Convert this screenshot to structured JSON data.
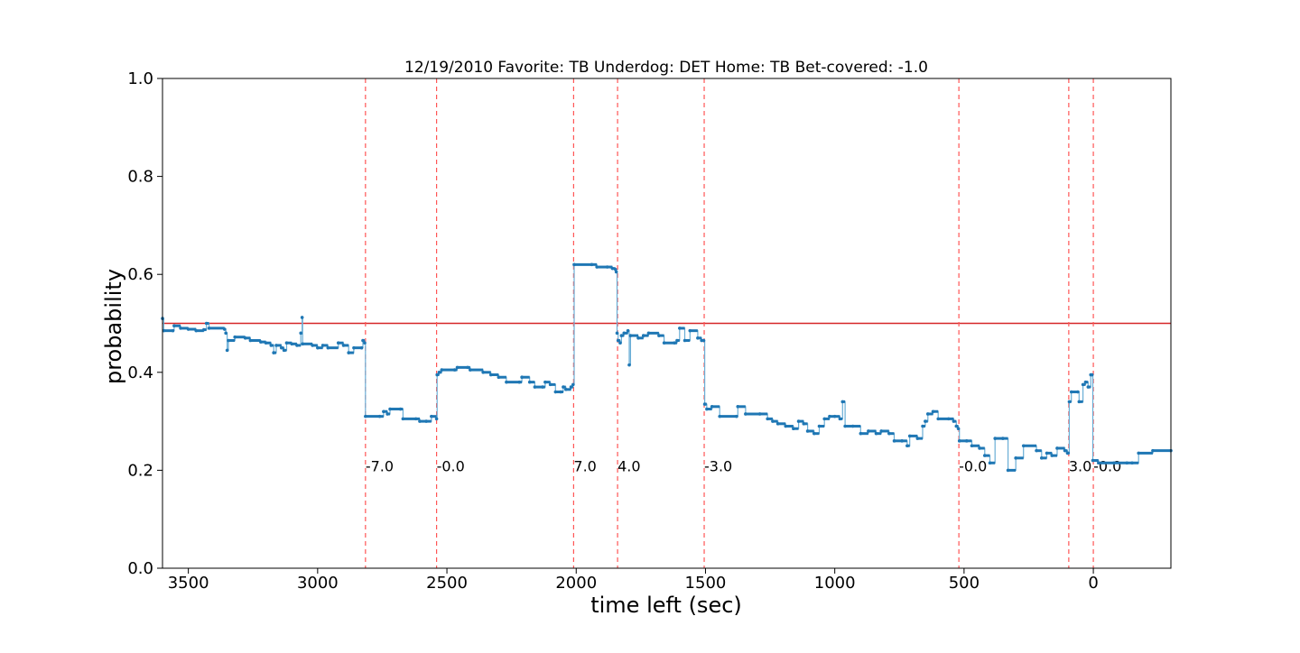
{
  "chart_data": {
    "type": "line",
    "title": "12/19/2010 Favorite: TB Underdog: DET Home: TB Bet-covered: -1.0",
    "xlabel": "time left (sec)",
    "ylabel": "probability",
    "xlim": [
      3600,
      -300
    ],
    "ylim": [
      0.0,
      1.0
    ],
    "x_ticks": [
      {
        "value": 3500,
        "label": "3500"
      },
      {
        "value": 3000,
        "label": "3000"
      },
      {
        "value": 2500,
        "label": "2500"
      },
      {
        "value": 2000,
        "label": "2000"
      },
      {
        "value": 1500,
        "label": "1500"
      },
      {
        "value": 1000,
        "label": "1000"
      },
      {
        "value": 500,
        "label": "500"
      },
      {
        "value": 0,
        "label": "0"
      }
    ],
    "y_ticks": [
      {
        "value": 0.0,
        "label": "0.0"
      },
      {
        "value": 0.2,
        "label": "0.2"
      },
      {
        "value": 0.4,
        "label": "0.4"
      },
      {
        "value": 0.6,
        "label": "0.6"
      },
      {
        "value": 0.8,
        "label": "0.8"
      },
      {
        "value": 1.0,
        "label": "1.0"
      }
    ],
    "grid": false,
    "reference_line": {
      "y": 0.5,
      "color": "#d62728"
    },
    "score_events": [
      {
        "x": 2815,
        "label": "-7.0"
      },
      {
        "x": 2540,
        "label": "-0.0"
      },
      {
        "x": 2010,
        "label": "7.0"
      },
      {
        "x": 1840,
        "label": "4.0"
      },
      {
        "x": 1505,
        "label": "-3.0"
      },
      {
        "x": 520,
        "label": "-0.0"
      },
      {
        "x": 95,
        "label": "3.0"
      },
      {
        "x": 0,
        "label": "-0.0"
      }
    ],
    "series": [
      {
        "color": "#1f77b4",
        "points": [
          [
            3600,
            0.51
          ],
          [
            3595,
            0.485
          ],
          [
            3560,
            0.485
          ],
          [
            3555,
            0.495
          ],
          [
            3530,
            0.49
          ],
          [
            3500,
            0.488
          ],
          [
            3470,
            0.485
          ],
          [
            3440,
            0.487
          ],
          [
            3430,
            0.5
          ],
          [
            3420,
            0.49
          ],
          [
            3360,
            0.488
          ],
          [
            3355,
            0.48
          ],
          [
            3350,
            0.445
          ],
          [
            3345,
            0.465
          ],
          [
            3320,
            0.472
          ],
          [
            3280,
            0.47
          ],
          [
            3260,
            0.465
          ],
          [
            3220,
            0.462
          ],
          [
            3200,
            0.46
          ],
          [
            3180,
            0.455
          ],
          [
            3170,
            0.44
          ],
          [
            3160,
            0.455
          ],
          [
            3140,
            0.45
          ],
          [
            3130,
            0.445
          ],
          [
            3120,
            0.46
          ],
          [
            3100,
            0.458
          ],
          [
            3080,
            0.455
          ],
          [
            3065,
            0.48
          ],
          [
            3060,
            0.512
          ],
          [
            3058,
            0.458
          ],
          [
            3020,
            0.455
          ],
          [
            3000,
            0.45
          ],
          [
            2980,
            0.455
          ],
          [
            2960,
            0.45
          ],
          [
            2920,
            0.46
          ],
          [
            2900,
            0.455
          ],
          [
            2880,
            0.44
          ],
          [
            2860,
            0.45
          ],
          [
            2830,
            0.45
          ],
          [
            2825,
            0.465
          ],
          [
            2818,
            0.46
          ],
          [
            2815,
            0.31
          ],
          [
            2760,
            0.31
          ],
          [
            2745,
            0.32
          ],
          [
            2730,
            0.315
          ],
          [
            2720,
            0.325
          ],
          [
            2680,
            0.325
          ],
          [
            2670,
            0.305
          ],
          [
            2620,
            0.305
          ],
          [
            2605,
            0.3
          ],
          [
            2580,
            0.3
          ],
          [
            2560,
            0.31
          ],
          [
            2540,
            0.305
          ],
          [
            2538,
            0.395
          ],
          [
            2530,
            0.4
          ],
          [
            2520,
            0.405
          ],
          [
            2470,
            0.405
          ],
          [
            2460,
            0.41
          ],
          [
            2420,
            0.41
          ],
          [
            2410,
            0.405
          ],
          [
            2360,
            0.4
          ],
          [
            2330,
            0.395
          ],
          [
            2300,
            0.39
          ],
          [
            2270,
            0.38
          ],
          [
            2220,
            0.38
          ],
          [
            2210,
            0.39
          ],
          [
            2180,
            0.38
          ],
          [
            2160,
            0.37
          ],
          [
            2130,
            0.37
          ],
          [
            2120,
            0.38
          ],
          [
            2100,
            0.375
          ],
          [
            2080,
            0.36
          ],
          [
            2060,
            0.36
          ],
          [
            2050,
            0.37
          ],
          [
            2040,
            0.365
          ],
          [
            2020,
            0.37
          ],
          [
            2012,
            0.375
          ],
          [
            2008,
            0.62
          ],
          [
            1940,
            0.62
          ],
          [
            1920,
            0.615
          ],
          [
            1880,
            0.615
          ],
          [
            1860,
            0.612
          ],
          [
            1848,
            0.61
          ],
          [
            1845,
            0.605
          ],
          [
            1842,
            0.48
          ],
          [
            1838,
            0.465
          ],
          [
            1830,
            0.46
          ],
          [
            1825,
            0.475
          ],
          [
            1815,
            0.48
          ],
          [
            1800,
            0.485
          ],
          [
            1795,
            0.415
          ],
          [
            1790,
            0.475
          ],
          [
            1760,
            0.47
          ],
          [
            1740,
            0.475
          ],
          [
            1720,
            0.48
          ],
          [
            1680,
            0.475
          ],
          [
            1660,
            0.46
          ],
          [
            1620,
            0.46
          ],
          [
            1610,
            0.465
          ],
          [
            1600,
            0.49
          ],
          [
            1580,
            0.465
          ],
          [
            1560,
            0.485
          ],
          [
            1530,
            0.47
          ],
          [
            1515,
            0.465
          ],
          [
            1507,
            0.465
          ],
          [
            1503,
            0.335
          ],
          [
            1495,
            0.325
          ],
          [
            1475,
            0.33
          ],
          [
            1445,
            0.31
          ],
          [
            1380,
            0.31
          ],
          [
            1375,
            0.33
          ],
          [
            1345,
            0.315
          ],
          [
            1290,
            0.315
          ],
          [
            1260,
            0.305
          ],
          [
            1240,
            0.3
          ],
          [
            1220,
            0.295
          ],
          [
            1190,
            0.29
          ],
          [
            1160,
            0.285
          ],
          [
            1140,
            0.3
          ],
          [
            1120,
            0.295
          ],
          [
            1105,
            0.28
          ],
          [
            1080,
            0.275
          ],
          [
            1060,
            0.29
          ],
          [
            1040,
            0.305
          ],
          [
            1020,
            0.31
          ],
          [
            1000,
            0.31
          ],
          [
            980,
            0.305
          ],
          [
            970,
            0.34
          ],
          [
            960,
            0.29
          ],
          [
            930,
            0.29
          ],
          [
            900,
            0.275
          ],
          [
            870,
            0.28
          ],
          [
            840,
            0.275
          ],
          [
            820,
            0.28
          ],
          [
            790,
            0.275
          ],
          [
            770,
            0.26
          ],
          [
            740,
            0.26
          ],
          [
            720,
            0.25
          ],
          [
            710,
            0.27
          ],
          [
            680,
            0.265
          ],
          [
            660,
            0.29
          ],
          [
            650,
            0.3
          ],
          [
            640,
            0.315
          ],
          [
            620,
            0.32
          ],
          [
            600,
            0.305
          ],
          [
            560,
            0.305
          ],
          [
            540,
            0.3
          ],
          [
            530,
            0.29
          ],
          [
            522,
            0.285
          ],
          [
            518,
            0.26
          ],
          [
            490,
            0.26
          ],
          [
            470,
            0.25
          ],
          [
            440,
            0.245
          ],
          [
            420,
            0.23
          ],
          [
            400,
            0.215
          ],
          [
            380,
            0.265
          ],
          [
            350,
            0.265
          ],
          [
            330,
            0.2
          ],
          [
            300,
            0.225
          ],
          [
            270,
            0.25
          ],
          [
            220,
            0.24
          ],
          [
            200,
            0.225
          ],
          [
            180,
            0.235
          ],
          [
            160,
            0.23
          ],
          [
            140,
            0.245
          ],
          [
            110,
            0.24
          ],
          [
            100,
            0.235
          ],
          [
            97,
            0.235
          ],
          [
            93,
            0.34
          ],
          [
            85,
            0.36
          ],
          [
            60,
            0.36
          ],
          [
            55,
            0.34
          ],
          [
            40,
            0.375
          ],
          [
            30,
            0.38
          ],
          [
            20,
            0.37
          ],
          [
            10,
            0.395
          ],
          [
            5,
            0.395
          ],
          [
            2,
            0.22
          ],
          [
            -20,
            0.215
          ],
          [
            -80,
            0.215
          ],
          [
            -130,
            0.215
          ],
          [
            -150,
            0.215
          ],
          [
            -175,
            0.235
          ],
          [
            -230,
            0.24
          ],
          [
            -300,
            0.24
          ]
        ]
      }
    ]
  }
}
